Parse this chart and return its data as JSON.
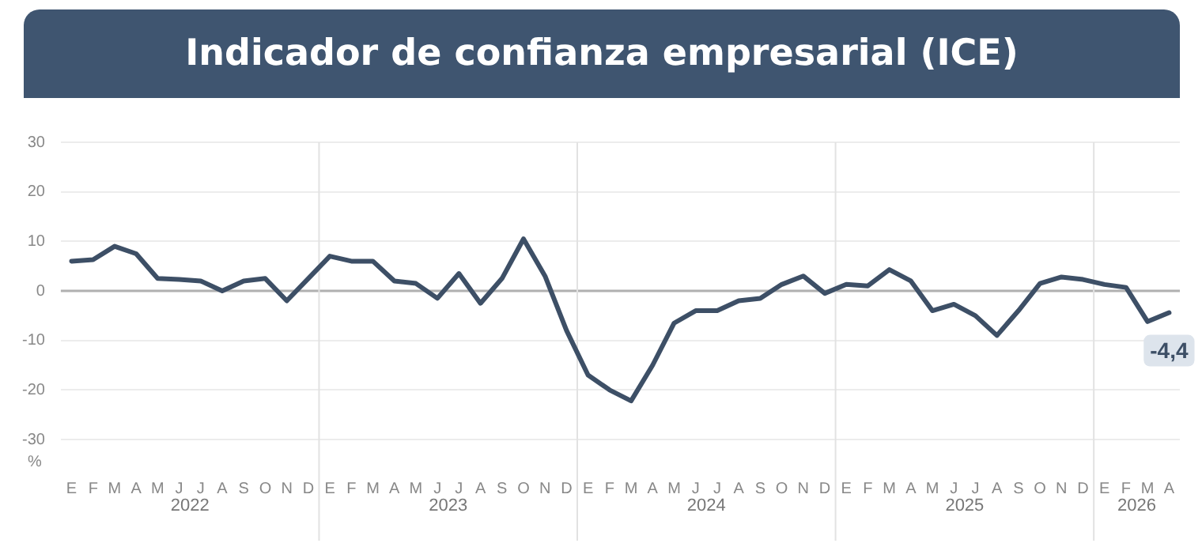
{
  "chart_data": {
    "type": "line",
    "title": "Indicador de confianza empresarial (ICE)",
    "ylabel": "%",
    "categories": [
      "E",
      "F",
      "M",
      "A",
      "M",
      "J",
      "J",
      "A",
      "S",
      "O",
      "N",
      "D",
      "E",
      "F",
      "M",
      "A",
      "M",
      "J",
      "J",
      "A",
      "S",
      "O",
      "N",
      "D",
      "E",
      "F",
      "M",
      "A",
      "M",
      "J",
      "J",
      "A",
      "S",
      "O",
      "N",
      "D",
      "E",
      "F",
      "M",
      "A",
      "M",
      "J",
      "J",
      "A",
      "S",
      "O",
      "N",
      "D",
      "E",
      "F",
      "M",
      "A"
    ],
    "annotations": [
      "2022",
      "2023",
      "2024",
      "2025",
      "2026"
    ],
    "series": [
      {
        "color": "#3d4f66",
        "values": [
          6,
          6.3,
          9,
          7.5,
          2.5,
          2.3,
          2,
          0,
          2,
          2.5,
          -2,
          2.5,
          7,
          6,
          6,
          2,
          1.5,
          -1.5,
          3.5,
          -2.5,
          2.5,
          10.5,
          3,
          -8,
          -17,
          -20,
          -22.2,
          -15,
          -6.5,
          -4,
          -4,
          -2,
          -1.5,
          1.3,
          3,
          -0.5,
          1.3,
          1,
          4.3,
          2,
          -4,
          -2.7,
          -5,
          -9,
          -4,
          1.5,
          2.8,
          2.3,
          1.3,
          0.7,
          -6.2,
          -4.4
        ],
        "value_labels": [
          null,
          null,
          null,
          null,
          null,
          null,
          null,
          null,
          null,
          null,
          null,
          null,
          null,
          null,
          null,
          null,
          null,
          null,
          null,
          null,
          null,
          null,
          null,
          null,
          null,
          null,
          null,
          null,
          null,
          null,
          null,
          null,
          null,
          null,
          null,
          null,
          null,
          null,
          null,
          null,
          null,
          null,
          null,
          null,
          null,
          null,
          null,
          null,
          null,
          null,
          null,
          "-4,4"
        ]
      }
    ],
    "ylim": [
      -30,
      30
    ],
    "yticks": [
      -30,
      -20,
      -10,
      0,
      10,
      20,
      30
    ],
    "ref_lines": [
      {
        "axis": "y",
        "value": 0,
        "color": "#b0b0b0"
      }
    ],
    "grid": "y",
    "legend": false,
    "marker": "none",
    "line_style": "solid"
  }
}
